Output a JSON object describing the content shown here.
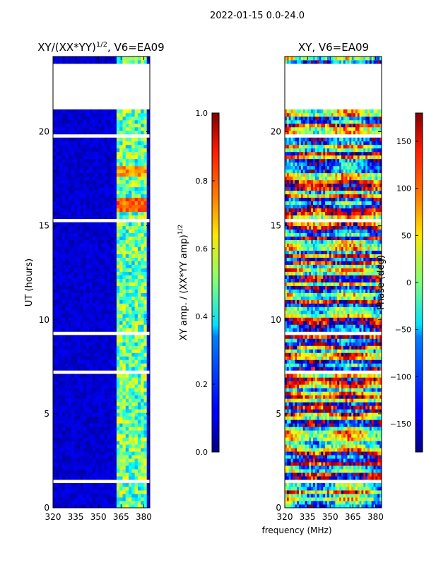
{
  "figure_title": "2022-01-15 0.0-24.0",
  "shared_xlabel": "frequency (MHz)",
  "chart_data": [
    {
      "type": "heatmap",
      "title": "XY/(XX*YY)",
      "title_exponent": "1/2",
      "title_suffix": ", V6=EA09",
      "xlabel": "",
      "ylabel": "UT (hours)",
      "xlim": [
        320,
        384
      ],
      "ylim": [
        0,
        24
      ],
      "xticks": [
        320,
        335,
        350,
        365,
        380
      ],
      "yticks": [
        0,
        5,
        10,
        15,
        20
      ],
      "colormap": "jet",
      "colorbar": {
        "label": "XY amp. / (XX*YY amp)",
        "label_exponent": "1/2",
        "range": [
          0.0,
          1.0
        ],
        "ticks": [
          "0.0",
          "0.2",
          "0.4",
          "0.6",
          "0.8",
          "1.0"
        ]
      },
      "active_band_mhz": [
        362,
        381
      ],
      "blank_intervals_hours": [
        [
          21.2,
          23.6
        ],
        [
          19.6,
          19.8
        ],
        [
          15.2,
          15.4
        ],
        [
          7.15,
          7.4
        ],
        [
          9.2,
          9.35
        ],
        [
          0.35,
          0.45
        ],
        [
          1.4,
          1.5
        ]
      ],
      "peak_value_regions": [
        {
          "freq_mhz": [
            363,
            381
          ],
          "hours": [
            15.8,
            16.5
          ],
          "value": 0.85
        },
        {
          "freq_mhz": [
            363,
            381
          ],
          "hours": [
            17.7,
            18.2
          ],
          "value": 0.8
        }
      ]
    },
    {
      "type": "heatmap",
      "title": "XY, V6=EA09",
      "xlabel": "frequency (MHz)",
      "ylabel": "",
      "xlim": [
        320,
        384
      ],
      "ylim": [
        0,
        24
      ],
      "xticks": [
        320,
        335,
        350,
        365,
        380
      ],
      "yticks": [
        0,
        5,
        10,
        15,
        20
      ],
      "colormap": "jet",
      "colorbar": {
        "label": "Phase (deg)",
        "range": [
          -180,
          180
        ],
        "ticks": [
          "−150",
          "−100",
          "−50",
          "0",
          "50",
          "100",
          "150"
        ]
      },
      "blank_intervals_hours": [
        [
          21.2,
          23.6
        ],
        [
          19.6,
          19.8
        ],
        [
          15.2,
          15.4
        ],
        [
          7.15,
          7.4
        ],
        [
          9.2,
          9.35
        ],
        [
          0.35,
          0.45
        ],
        [
          1.4,
          1.5
        ]
      ]
    }
  ]
}
